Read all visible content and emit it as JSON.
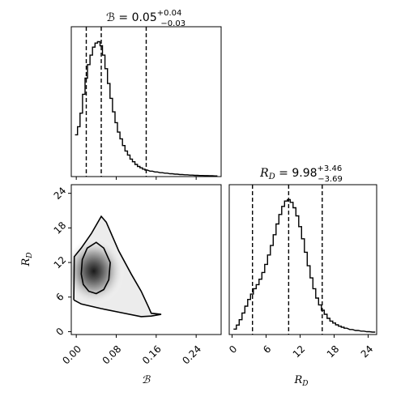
{
  "chart_data": [
    {
      "type": "area",
      "panel": "marginal",
      "parameter": "B",
      "title": {
        "lhs": "ℬ = 0.05",
        "sup": "+0.04",
        "sub": "−0.03"
      },
      "xlim": [
        -0.01,
        0.29
      ],
      "median": 0.05,
      "quantiles": [
        0.02,
        0.05,
        0.14
      ],
      "histogram": {
        "x": [
          0.0,
          0.005,
          0.01,
          0.015,
          0.02,
          0.025,
          0.03,
          0.035,
          0.04,
          0.045,
          0.05,
          0.055,
          0.06,
          0.065,
          0.07,
          0.075,
          0.08,
          0.085,
          0.09,
          0.095,
          0.1,
          0.105,
          0.11,
          0.115,
          0.12,
          0.125,
          0.13,
          0.135,
          0.14,
          0.15,
          0.16,
          0.17,
          0.18,
          0.19,
          0.2,
          0.21,
          0.22,
          0.23,
          0.24,
          0.25,
          0.26,
          0.27,
          0.28
        ],
        "density": [
          0.31,
          0.37,
          0.47,
          0.61,
          0.73,
          0.83,
          0.9,
          0.96,
          0.99,
          1.0,
          0.97,
          0.9,
          0.8,
          0.69,
          0.58,
          0.48,
          0.4,
          0.33,
          0.28,
          0.23,
          0.19,
          0.16,
          0.13,
          0.11,
          0.09,
          0.075,
          0.065,
          0.055,
          0.048,
          0.04,
          0.034,
          0.029,
          0.025,
          0.021,
          0.018,
          0.015,
          0.013,
          0.011,
          0.009,
          0.008,
          0.007,
          0.006,
          0.005
        ]
      }
    },
    {
      "type": "heatmap",
      "panel": "joint",
      "xlim": [
        -0.01,
        0.29
      ],
      "ylim": [
        -0.5,
        25.5
      ],
      "xticks": [
        "0.00",
        "0.08",
        "0.16",
        "0.24"
      ],
      "xtick_values": [
        0.0,
        0.08,
        0.16,
        0.24
      ],
      "yticks": [
        "0",
        "6",
        "12",
        "18",
        "24"
      ],
      "ytick_values": [
        0,
        6,
        12,
        18,
        24
      ],
      "xlabel": "ℬ",
      "ylabel": "R_D",
      "peak": [
        0.035,
        10.5
      ],
      "inner_contour": [
        [
          0.01,
          10.0
        ],
        [
          0.012,
          12.5
        ],
        [
          0.022,
          14.5
        ],
        [
          0.04,
          15.5
        ],
        [
          0.055,
          14.5
        ],
        [
          0.068,
          12.0
        ],
        [
          0.065,
          9.0
        ],
        [
          0.055,
          7.3
        ],
        [
          0.04,
          6.6
        ],
        [
          0.025,
          7.0
        ],
        [
          0.014,
          8.2
        ]
      ],
      "outer_contour": [
        [
          -0.005,
          5.5
        ],
        [
          -0.004,
          13.0
        ],
        [
          0.01,
          14.5
        ],
        [
          0.03,
          17.0
        ],
        [
          0.05,
          20.0
        ],
        [
          0.06,
          19.0
        ],
        [
          0.085,
          14.0
        ],
        [
          0.11,
          10.0
        ],
        [
          0.13,
          7.0
        ],
        [
          0.145,
          4.2
        ],
        [
          0.15,
          3.2
        ],
        [
          0.17,
          3.0
        ],
        [
          0.15,
          2.7
        ],
        [
          0.13,
          2.6
        ],
        [
          0.09,
          3.3
        ],
        [
          0.05,
          4.0
        ],
        [
          0.01,
          4.8
        ],
        [
          -0.005,
          5.5
        ]
      ]
    },
    {
      "type": "area",
      "panel": "marginal",
      "parameter": "R_D",
      "title": {
        "lhs": "R",
        "lhs_sub": "D",
        "eq": " = 9.98",
        "sup": "+3.46",
        "sub": "−3.69"
      },
      "xlim": [
        -0.5,
        25.5
      ],
      "xticks": [
        "0",
        "6",
        "12",
        "18",
        "24"
      ],
      "xtick_values": [
        0,
        6,
        12,
        18,
        24
      ],
      "xlabel": "R_D",
      "median": 9.98,
      "quantiles": [
        3.6,
        9.98,
        15.9
      ],
      "histogram": {
        "x": [
          0.5,
          1.0,
          1.5,
          2.0,
          2.5,
          3.0,
          3.5,
          4.0,
          4.5,
          5.0,
          5.5,
          6.0,
          6.5,
          7.0,
          7.5,
          8.0,
          8.5,
          9.0,
          9.5,
          10.0,
          10.5,
          11.0,
          11.5,
          12.0,
          12.5,
          13.0,
          13.5,
          14.0,
          14.5,
          15.0,
          15.5,
          16.0,
          16.5,
          17.0,
          17.5,
          18.0,
          18.5,
          19.0,
          19.5,
          20.0,
          21.0,
          22.0,
          23.0,
          24.0,
          25.0
        ],
        "density": [
          0.04,
          0.07,
          0.11,
          0.16,
          0.21,
          0.26,
          0.3,
          0.34,
          0.37,
          0.41,
          0.46,
          0.52,
          0.59,
          0.66,
          0.74,
          0.82,
          0.89,
          0.95,
          0.99,
          1.0,
          0.98,
          0.94,
          0.88,
          0.8,
          0.71,
          0.61,
          0.51,
          0.42,
          0.34,
          0.27,
          0.22,
          0.18,
          0.15,
          0.12,
          0.1,
          0.085,
          0.072,
          0.062,
          0.054,
          0.047,
          0.037,
          0.03,
          0.025,
          0.021,
          0.018
        ]
      }
    }
  ]
}
